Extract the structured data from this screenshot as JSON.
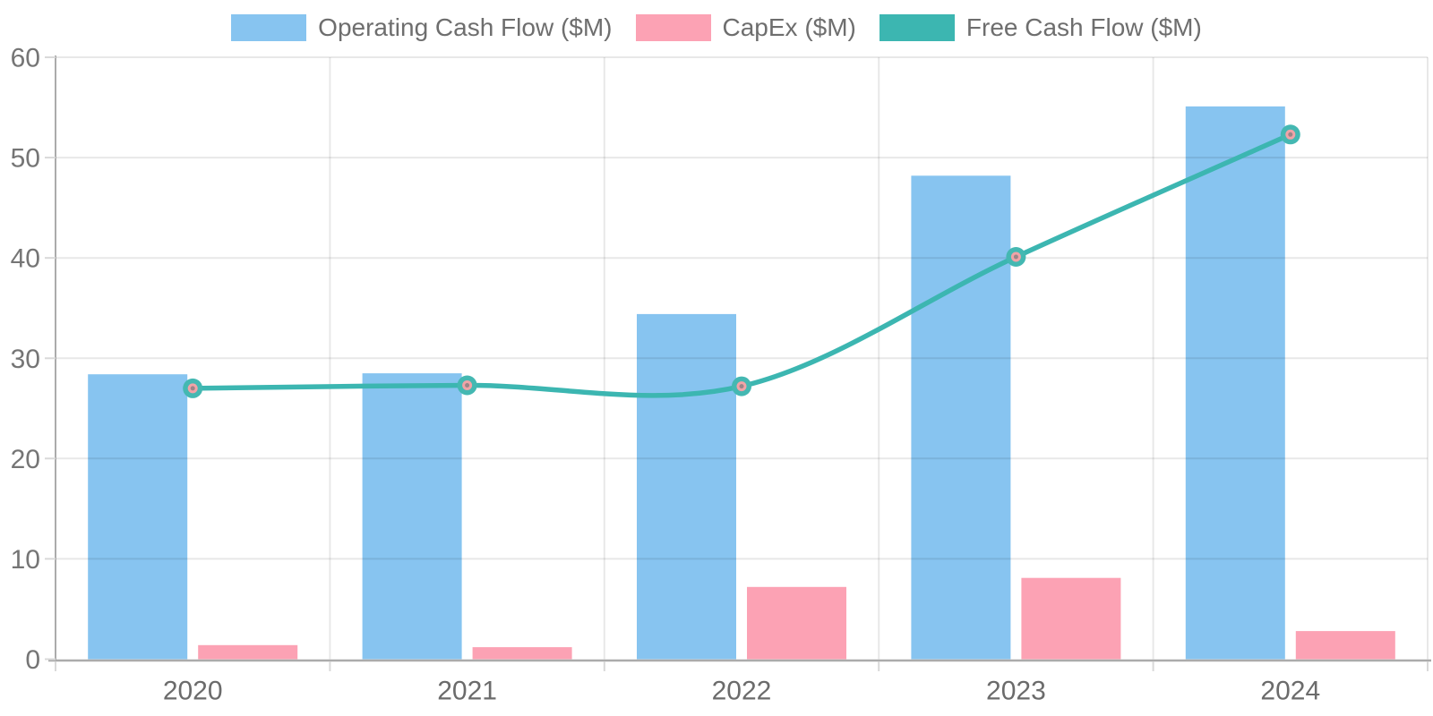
{
  "chart_data": {
    "type": "bar",
    "subtype": "grouped-bars-with-line-overlay",
    "title": "",
    "categories": [
      "2020",
      "2021",
      "2022",
      "2023",
      "2024"
    ],
    "series": [
      {
        "name": "Operating Cash Flow ($M)",
        "type": "bar",
        "color": "#87C4F0",
        "values": [
          28.4,
          28.5,
          34.4,
          48.2,
          55.1
        ]
      },
      {
        "name": "CapEx ($M)",
        "type": "bar",
        "color": "#FCA2B4",
        "values": [
          1.4,
          1.2,
          7.2,
          8.1,
          2.8
        ]
      },
      {
        "name": "Free Cash Flow ($M)",
        "type": "line",
        "color": "#3CB6B1",
        "marker": {
          "outer": "#44B8B2",
          "inner": "#F1A3A7",
          "dot": "#9A8588"
        },
        "values": [
          27.0,
          27.3,
          27.2,
          40.1,
          52.3
        ]
      }
    ],
    "ylim": [
      0,
      60
    ],
    "yticks": [
      0,
      10,
      20,
      30,
      40,
      50,
      60
    ],
    "grid": true,
    "legend_position": "top"
  },
  "colors": {
    "grid": "rgba(0,0,0,0.09)",
    "axis": "#ABABAB",
    "tick": "#D9D9D9",
    "y_label": "#757575",
    "x_label": "#6B6B6B",
    "legend_text": "#6E6E6E"
  }
}
